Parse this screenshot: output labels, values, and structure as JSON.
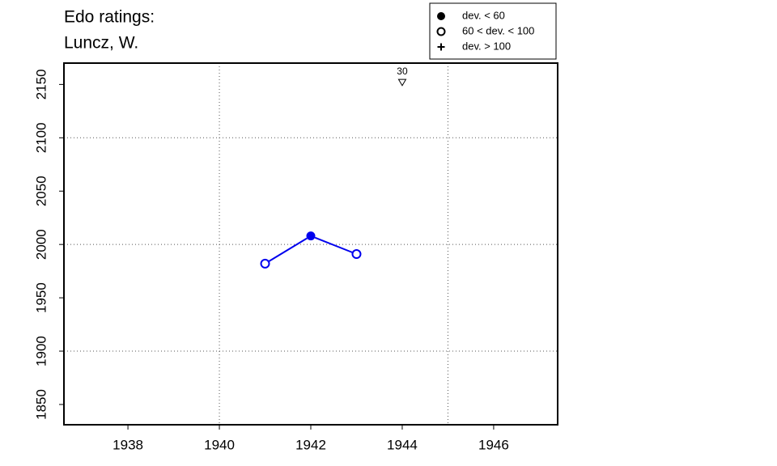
{
  "chart_data": {
    "type": "line",
    "title": [
      "Edo ratings:",
      "Luncz, W."
    ],
    "series": [
      {
        "color": "#0000ee",
        "x": [
          1941,
          1942,
          1943
        ],
        "values": [
          1982,
          2008,
          1991
        ],
        "markers": [
          "open",
          "filled",
          "open"
        ]
      }
    ],
    "xlim": [
      1936.6,
      1947.4
    ],
    "xticks": [
      1938,
      1940,
      1942,
      1944,
      1946
    ],
    "ylim": [
      1831,
      2170
    ],
    "yticks": [
      1850,
      1900,
      1950,
      2000,
      2050,
      2100,
      2150
    ],
    "grid_x": [
      1940,
      1945
    ],
    "grid_y": [
      1900,
      2000,
      2100
    ],
    "annotations": [
      {
        "x": 1944,
        "y": 2152,
        "label": "30",
        "marker": "triangle-down"
      }
    ],
    "legend": {
      "position": "top-right",
      "entries": [
        {
          "label": "dev. < 60",
          "marker": "filled"
        },
        {
          "label": "60 < dev. < 100",
          "marker": "open"
        },
        {
          "label": "dev. > 100",
          "marker": "plus"
        }
      ]
    }
  }
}
